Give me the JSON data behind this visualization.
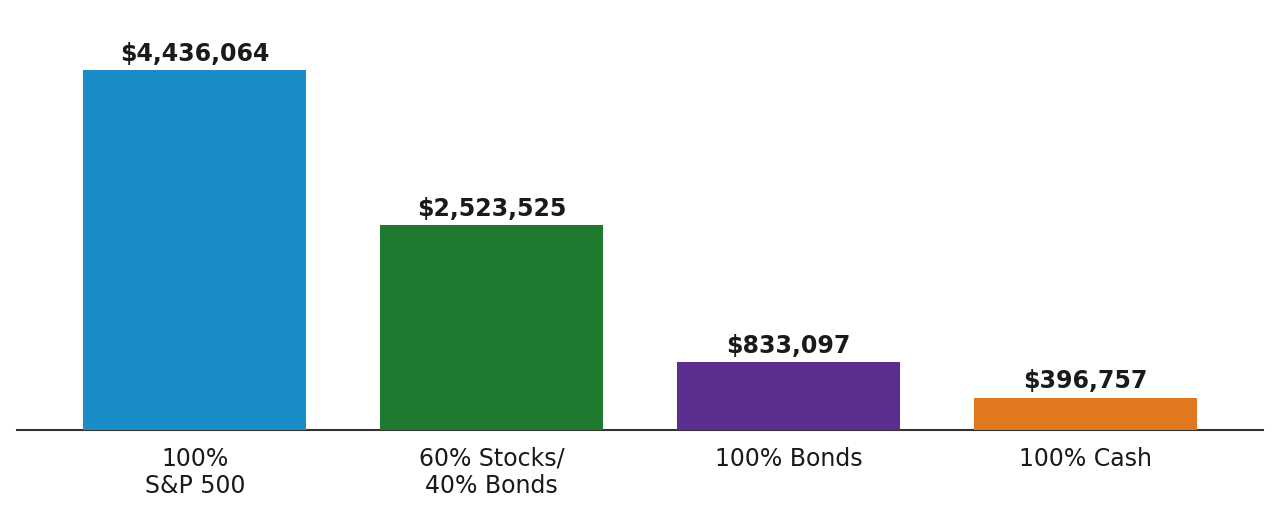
{
  "categories": [
    "100%\nS&P 500",
    "60% Stocks/\n40% Bonds",
    "100% Bonds",
    "100% Cash"
  ],
  "values": [
    4436064,
    2523525,
    833097,
    396757
  ],
  "bar_colors": [
    "#1a8cc7",
    "#1e7a2e",
    "#5b2d8e",
    "#e07820"
  ],
  "value_labels": [
    "$4,436,064",
    "$2,523,525",
    "$833,097",
    "$396,757"
  ],
  "background_color": "#ffffff",
  "label_fontsize": 17,
  "value_fontsize": 17,
  "bar_width": 0.75,
  "ylim": [
    0,
    5100000
  ],
  "xlim": [
    -0.6,
    3.6
  ]
}
